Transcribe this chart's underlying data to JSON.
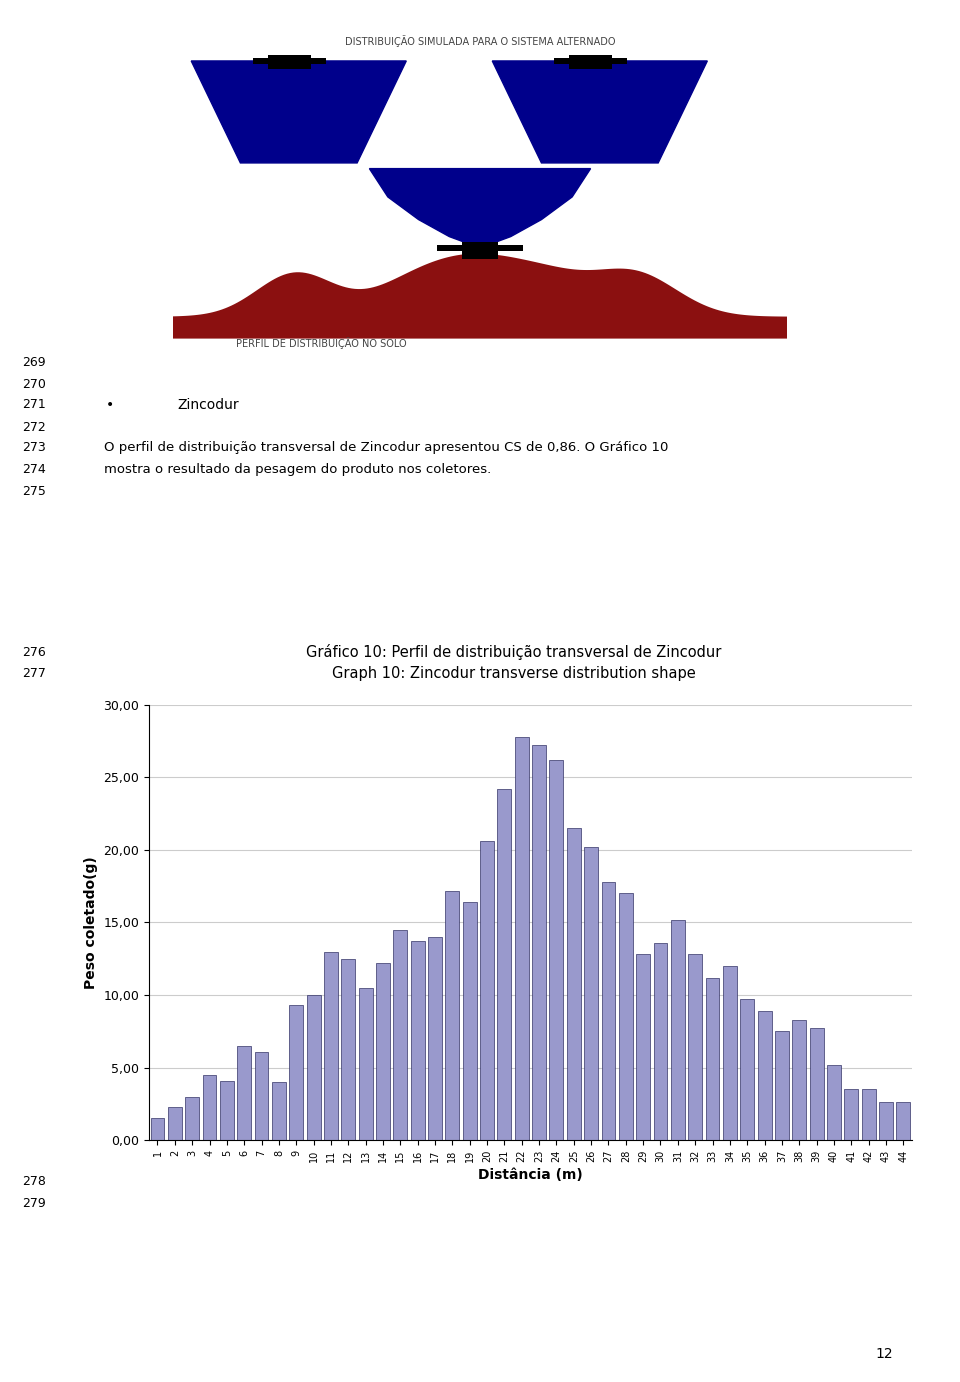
{
  "title_pt": "Gráfico 10: Perfil de distribuição transversal de Zincodur",
  "title_en": "Graph 10: Zincodur transverse distribution shape",
  "xlabel": "Distância (m)",
  "ylabel": "Peso coletado(g)",
  "ylim": [
    0,
    30
  ],
  "yticks": [
    0,
    5,
    10,
    15,
    20,
    25,
    30
  ],
  "ytick_labels": [
    "0,00",
    "5,00",
    "10,00",
    "15,00",
    "20,00",
    "25,00",
    "30,00"
  ],
  "bar_color": "#9999CC",
  "bar_edge_color": "#333366",
  "bar_width": 0.8,
  "values": [
    1.5,
    2.3,
    3.0,
    4.5,
    4.1,
    6.5,
    6.1,
    4.0,
    9.3,
    10.0,
    13.0,
    12.5,
    10.5,
    12.2,
    14.5,
    13.7,
    14.0,
    17.2,
    16.4,
    20.6,
    24.2,
    27.8,
    27.2,
    26.2,
    21.5,
    20.2,
    17.8,
    17.0,
    12.8,
    13.6,
    15.2,
    12.8,
    11.2,
    12.0,
    9.7,
    8.9,
    7.5,
    8.3,
    7.7,
    5.2,
    3.5,
    3.5,
    2.6,
    2.6
  ],
  "line_numbers": [
    "269",
    "270",
    "271",
    "272",
    "273",
    "274",
    "275",
    "276",
    "277",
    "278",
    "279"
  ],
  "background_color": "#ffffff",
  "grid_color": "#cccccc",
  "grid_linewidth": 0.8,
  "axis_fontsize": 10,
  "tick_fontsize": 9,
  "image_top_title": "DISTRIBUIÇÃO SIMULADA PARA O SISTEMA ALTERNADO",
  "image_bottom_label": "PERFIL DE DISTRIBUIÇÃO NO SOLO",
  "page_number": "12"
}
